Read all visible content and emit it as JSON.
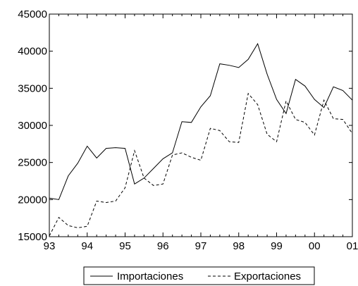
{
  "chart_data": {
    "type": "line",
    "x_unit": "quarter",
    "x_tick_labels": [
      "93",
      "94",
      "95",
      "96",
      "97",
      "98",
      "99",
      "00",
      "01"
    ],
    "y_tick_labels": [
      "15000",
      "20000",
      "25000",
      "30000",
      "35000",
      "40000",
      "45000"
    ],
    "ylim": [
      15000,
      45000
    ],
    "xlim": [
      1993.0,
      2001.0
    ],
    "grid": false,
    "legend_position": "bottom-center",
    "series": [
      {
        "name": "Importaciones",
        "line_style": "solid",
        "color": "#000000",
        "x": [
          1993.0,
          1993.25,
          1993.5,
          1993.75,
          1994.0,
          1994.25,
          1994.5,
          1994.75,
          1995.0,
          1995.25,
          1995.5,
          1995.75,
          1996.0,
          1996.25,
          1996.5,
          1996.75,
          1997.0,
          1997.25,
          1997.5,
          1997.75,
          1998.0,
          1998.25,
          1998.5,
          1998.75,
          1999.0,
          1999.25,
          1999.5,
          1999.75,
          2000.0,
          2000.25,
          2000.5,
          2000.75,
          2001.0
        ],
        "values": [
          20200,
          20000,
          23200,
          24900,
          27200,
          25600,
          26900,
          27000,
          26900,
          22100,
          22900,
          24200,
          25500,
          26300,
          30500,
          30400,
          32500,
          34000,
          38300,
          38100,
          37800,
          38900,
          41000,
          36900,
          33500,
          31600,
          36200,
          35300,
          33500,
          32400,
          35200,
          34700,
          33400
        ]
      },
      {
        "name": "Exportaciones",
        "line_style": "dashed",
        "color": "#000000",
        "x": [
          1993.0,
          1993.25,
          1993.5,
          1993.75,
          1994.0,
          1994.25,
          1994.5,
          1994.75,
          1995.0,
          1995.25,
          1995.5,
          1995.75,
          1996.0,
          1996.25,
          1996.5,
          1996.75,
          1997.0,
          1997.25,
          1997.5,
          1997.75,
          1998.0,
          1998.25,
          1998.5,
          1998.75,
          1999.0,
          1999.25,
          1999.5,
          1999.75,
          2000.0,
          2000.25,
          2000.5,
          2000.75,
          2001.0
        ],
        "values": [
          15100,
          17600,
          16500,
          16200,
          16400,
          19800,
          19600,
          19800,
          21600,
          26600,
          22900,
          21900,
          22100,
          26000,
          26300,
          25700,
          25300,
          29600,
          29300,
          27800,
          27700,
          34300,
          32800,
          28800,
          27800,
          33300,
          30800,
          30400,
          28700,
          33400,
          30900,
          30800,
          28900
        ]
      }
    ]
  }
}
